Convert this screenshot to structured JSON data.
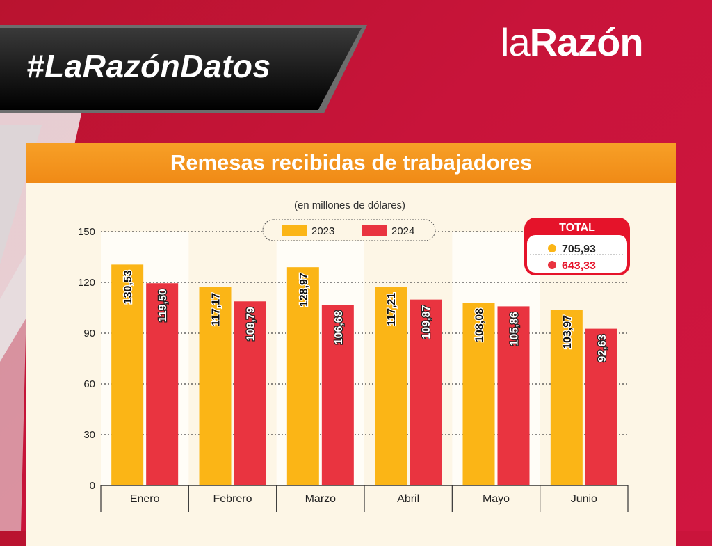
{
  "header": {
    "hashtag": "#LaRazónDatos",
    "logo_light": "la",
    "logo_bold": "Razón"
  },
  "colors": {
    "series_2023": "#fbb516",
    "series_2024": "#e93440",
    "title_bar": "#f39019",
    "background": "#c8143a",
    "card": "#fdf6e6"
  },
  "totals": {
    "label": "TOTAL",
    "value_2023": "705,93",
    "value_2024": "643,33"
  },
  "chart_data": {
    "type": "bar",
    "title": "Remesas recibidas de trabajadores",
    "subtitle": "(en millones de dólares)",
    "categories": [
      "Enero",
      "Febrero",
      "Marzo",
      "Abril",
      "Mayo",
      "Junio"
    ],
    "series": [
      {
        "name": "2023",
        "values": [
          130.53,
          117.17,
          128.97,
          117.21,
          108.08,
          103.97
        ],
        "labels": [
          "130,53",
          "117,17",
          "128,97",
          "117,21",
          "108,08",
          "103,97"
        ]
      },
      {
        "name": "2024",
        "values": [
          119.5,
          108.79,
          106.68,
          109.87,
          105.86,
          92.63
        ],
        "labels": [
          "119,50",
          "108,79",
          "106,68",
          "109,87",
          "105,86",
          "92,63"
        ]
      }
    ],
    "yticks": [
      0,
      30,
      60,
      90,
      120,
      150
    ],
    "ylim": [
      0,
      150
    ],
    "grid": true,
    "legend_position": "top-center"
  }
}
